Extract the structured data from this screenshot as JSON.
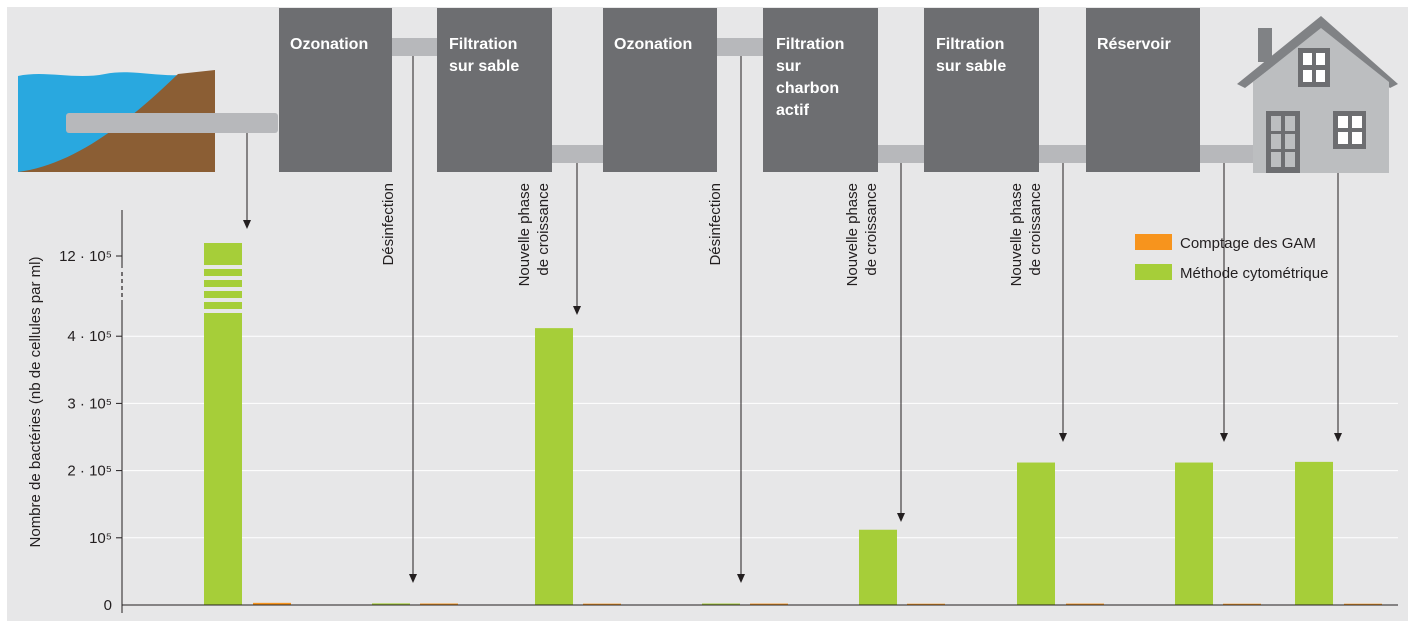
{
  "colors": {
    "background": "#e7e7e8",
    "process_box": "#6d6e71",
    "water": "#29a8df",
    "soil": "#8b5e34",
    "pipe": "#b7b8bb",
    "green": "#a6ce39",
    "orange": "#f7941d",
    "house": "#bcbec0",
    "roof": "#808285",
    "grid": "#ffffff"
  },
  "process_steps": [
    {
      "lines": [
        "Ozonation"
      ]
    },
    {
      "lines": [
        "Filtration",
        "sur sable"
      ]
    },
    {
      "lines": [
        "Ozonation"
      ]
    },
    {
      "lines": [
        "Filtration",
        "sur",
        "charbon",
        "actif"
      ]
    },
    {
      "lines": [
        "Filtration",
        "sur sable"
      ]
    },
    {
      "lines": [
        "Réservoir"
      ]
    }
  ],
  "annotations": [
    {
      "lines": [
        "Désinfection"
      ]
    },
    {
      "lines": [
        "Nouvelle phase",
        "de croissance"
      ]
    },
    {
      "lines": [
        "Désinfection"
      ]
    },
    {
      "lines": [
        "Nouvelle phase",
        "de croissance"
      ]
    },
    {
      "lines": [
        "Nouvelle phase",
        "de croissance"
      ]
    }
  ],
  "chart_data": {
    "type": "bar",
    "ylabel": "Nombre de bactéries (nb de cellules par ml)",
    "xlabel": "",
    "axis_break": "entre 4 · 10⁵ et 12 · 10⁵",
    "yticks": [
      {
        "value": 0,
        "label": "0"
      },
      {
        "value": 100000,
        "label": "10⁵"
      },
      {
        "value": 200000,
        "label": "2 · 10⁵"
      },
      {
        "value": 300000,
        "label": "3 · 10⁵"
      },
      {
        "value": 400000,
        "label": "4 · 10⁵"
      },
      {
        "value": 1200000,
        "label": "12 · 10⁵"
      }
    ],
    "grid": true,
    "legend_position": "top-right",
    "series": [
      {
        "name": "Comptage des GAM",
        "color": "#f7941d",
        "values": [
          3200,
          2200,
          2000,
          2100,
          1900,
          2100,
          1900,
          1900
        ]
      },
      {
        "name": "Méthode cytométrique",
        "color": "#a6ce39",
        "values": [
          1200000,
          2400,
          412000,
          2200,
          112000,
          212000,
          212000,
          213000
        ]
      }
    ]
  }
}
